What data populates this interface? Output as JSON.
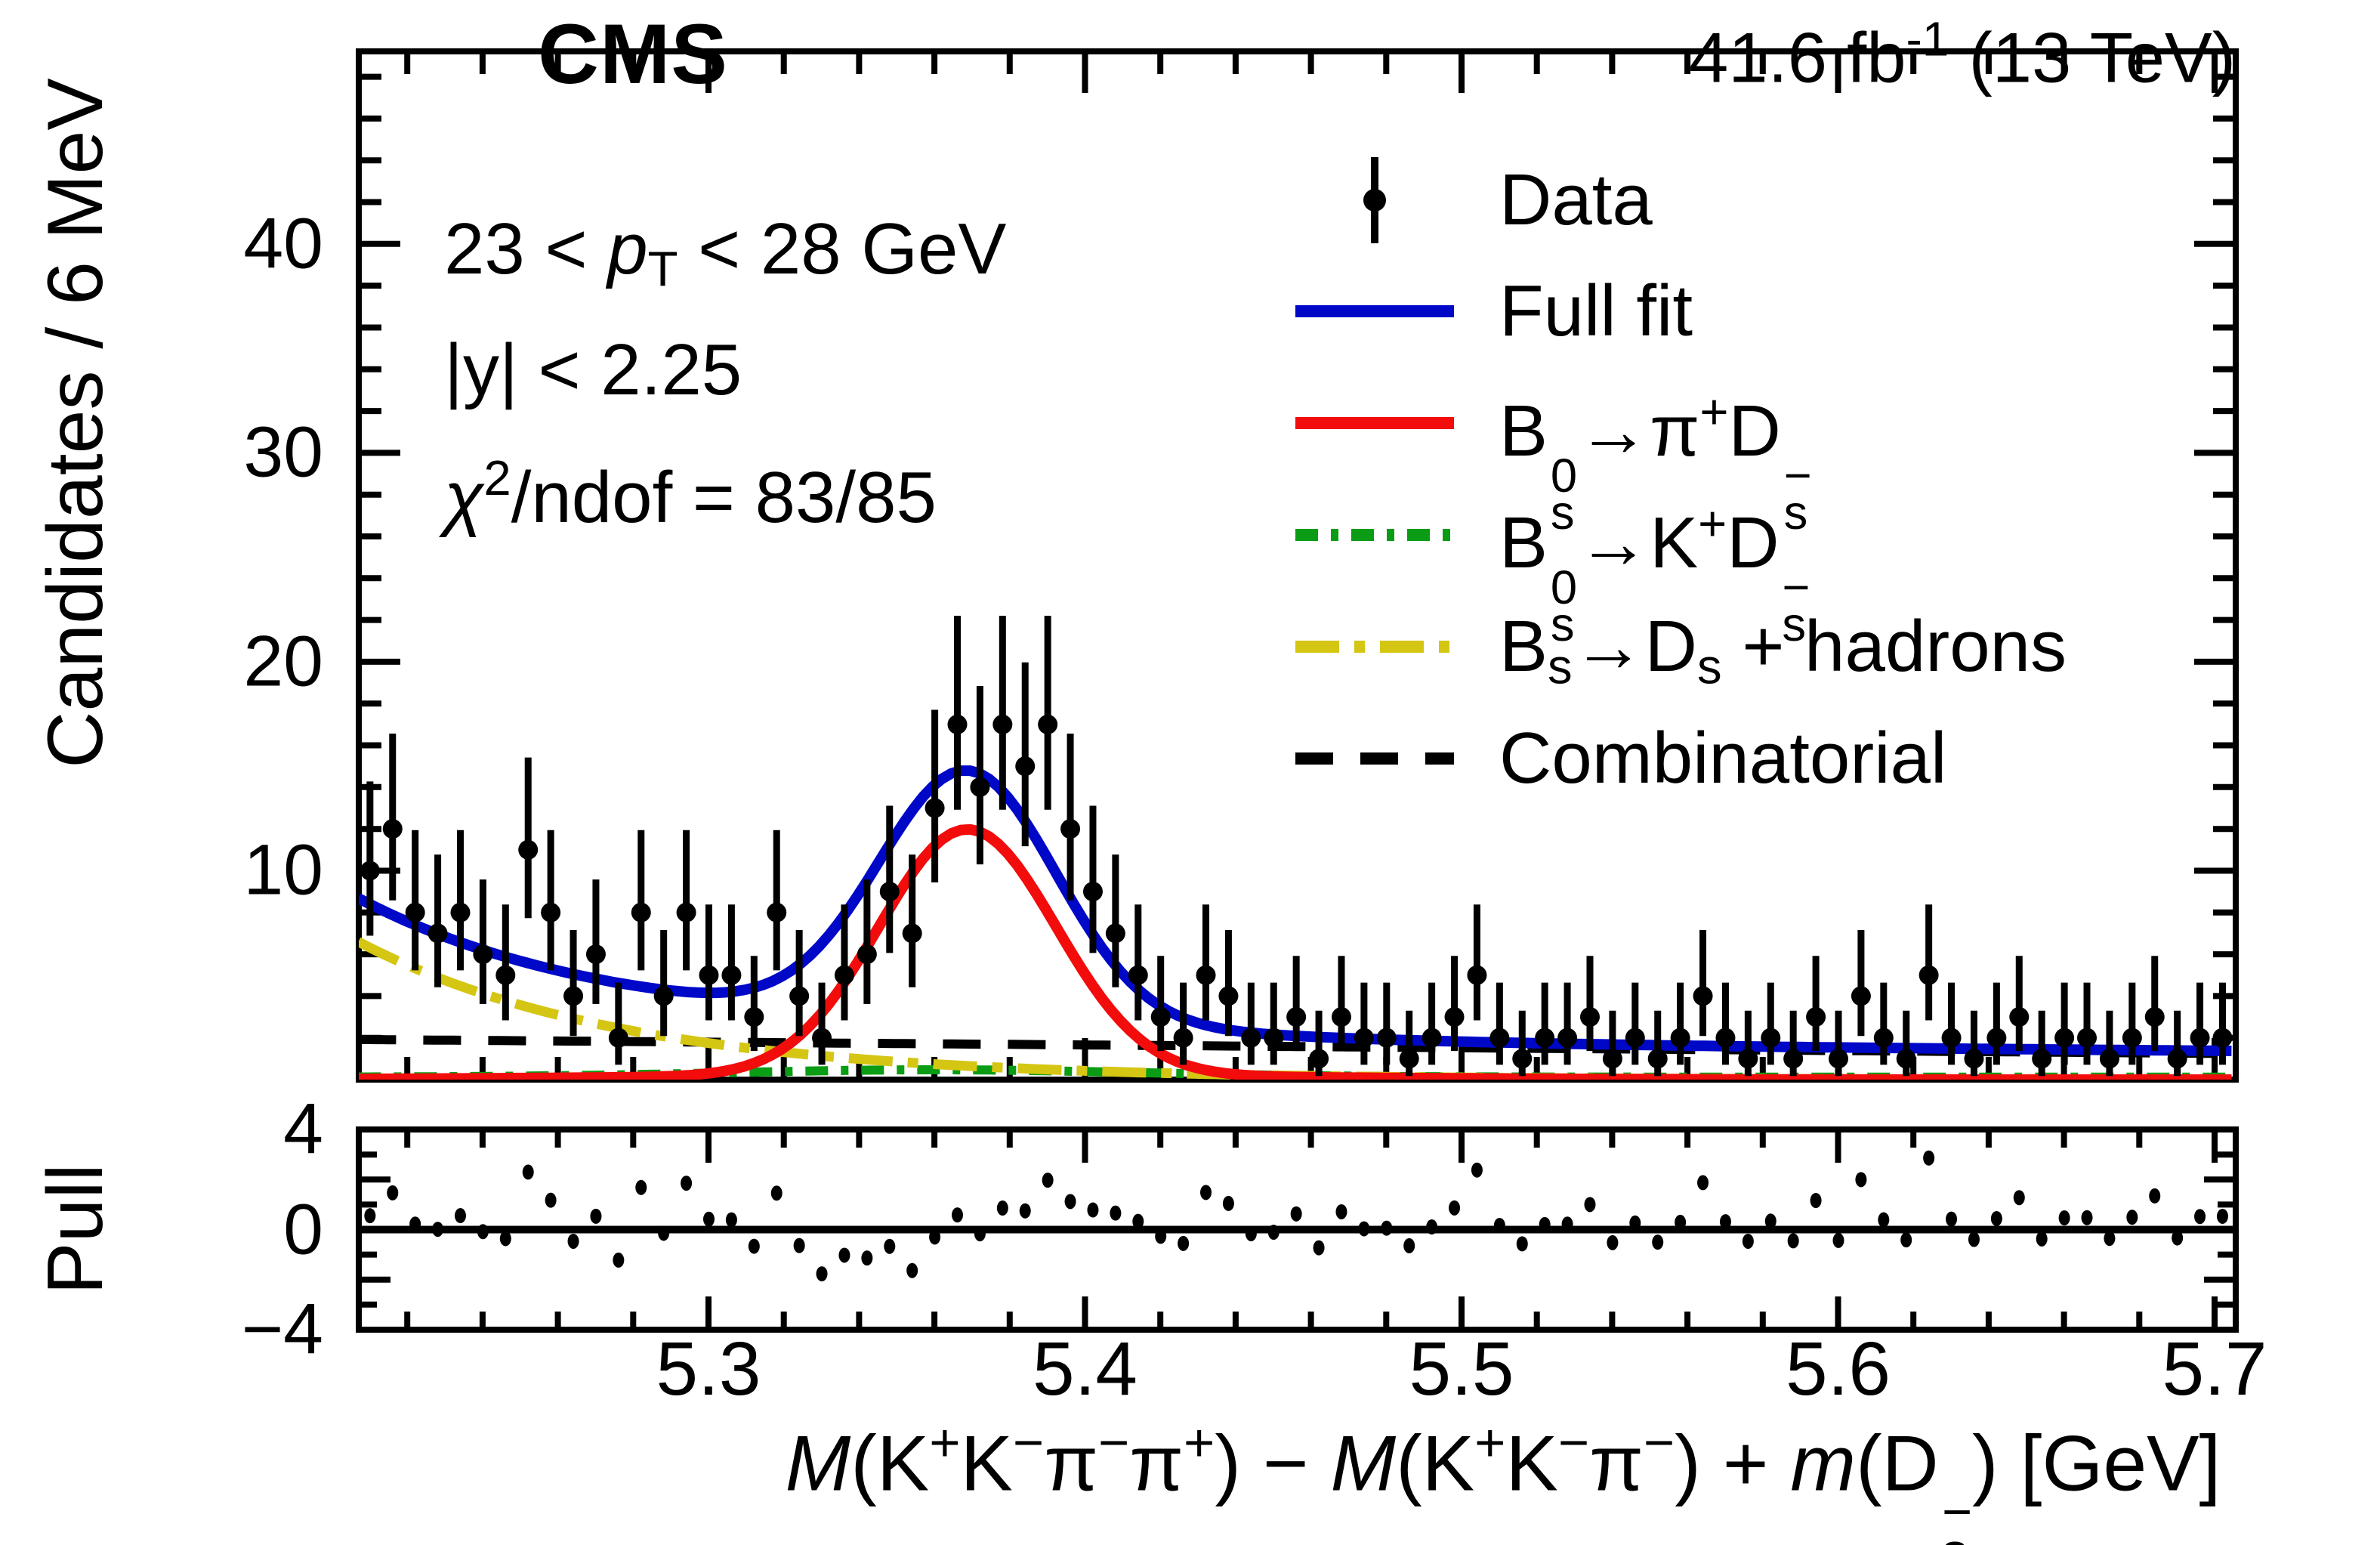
{
  "header": {
    "experiment_label": "CMS",
    "lumi_parts": [
      {
        "t": "41.6 fb"
      },
      {
        "sup": "-1"
      },
      {
        "t": " (13 TeV)"
      }
    ]
  },
  "annotations": [
    {
      "name": "pt-range-annotation",
      "parts": [
        {
          "t": "23 < "
        },
        {
          "i": "p"
        },
        {
          "sub": "T"
        },
        {
          "t": " < 28 GeV"
        }
      ]
    },
    {
      "name": "rapidity-annotation",
      "parts": [
        {
          "t": "|y| < 2.25"
        }
      ]
    },
    {
      "name": "chi2-annotation",
      "parts": [
        {
          "i": "χ"
        },
        {
          "sup": "2"
        },
        {
          "t": "/ndof = 83/85"
        }
      ]
    }
  ],
  "legend": [
    {
      "name": "data",
      "marker": "point",
      "color": "#000000",
      "parts": [
        {
          "t": "Data"
        }
      ]
    },
    {
      "name": "full-fit",
      "marker": "line",
      "color": "#0008c8",
      "dash": "",
      "parts": [
        {
          "t": "Full fit"
        }
      ]
    },
    {
      "name": "pi-ds",
      "marker": "line",
      "color": "#f20c0c",
      "dash": "",
      "parts": [
        {
          "t": "B"
        },
        {
          "stack": {
            "sup": "0",
            "sub": "s"
          }
        },
        {
          "t": "→π"
        },
        {
          "sup": "+"
        },
        {
          "t": "D"
        },
        {
          "stack": {
            "sup": "−",
            "sub": "s"
          }
        }
      ]
    },
    {
      "name": "k-ds",
      "marker": "line",
      "color": "#0a9c14",
      "dash": "30,17,10,17",
      "parts": [
        {
          "t": "B"
        },
        {
          "stack": {
            "sup": "0",
            "sub": "s"
          }
        },
        {
          "t": "→K"
        },
        {
          "sup": "+"
        },
        {
          "t": "D"
        },
        {
          "stack": {
            "sup": "−",
            "sub": "s"
          }
        }
      ]
    },
    {
      "name": "ds-hadrons",
      "marker": "line",
      "color": "#d4c613",
      "dash": "58,20,14,20",
      "parts": [
        {
          "t": "B"
        },
        {
          "sub": "s"
        },
        {
          "t": "→D"
        },
        {
          "sub": "s"
        },
        {
          "t": " + hadrons"
        }
      ]
    },
    {
      "name": "combinatorial",
      "marker": "line",
      "color": "#000000",
      "dash": "50,36",
      "parts": [
        {
          "t": "Combinatorial"
        }
      ]
    }
  ],
  "chart_data": {
    "type": "histogram_fit_with_pull",
    "title": "CMS",
    "xlabel_parts": [
      {
        "i": "M"
      },
      {
        "t": "(K"
      },
      {
        "sup": "+"
      },
      {
        "t": "K"
      },
      {
        "sup": "−"
      },
      {
        "t": "π"
      },
      {
        "sup": "−"
      },
      {
        "t": "π"
      },
      {
        "sup": "+"
      },
      {
        "t": ") − "
      },
      {
        "i": "M"
      },
      {
        "t": "(K"
      },
      {
        "sup": "+"
      },
      {
        "t": "K"
      },
      {
        "sup": "−"
      },
      {
        "t": "π"
      },
      {
        "sup": "−"
      },
      {
        "t": ") + "
      },
      {
        "i": "m"
      },
      {
        "t": "(D"
      },
      {
        "stack": {
          "sup": "−",
          "sub": "s"
        }
      },
      {
        "t": ") [GeV]"
      }
    ],
    "ylabel_main": "Candidates / 6 MeV",
    "ylabel_pull": "Pull",
    "x_ticks": [
      "5.3",
      "5.4",
      "5.5",
      "5.6",
      "5.7"
    ],
    "x_tick_values": [
      5.3,
      5.4,
      5.5,
      5.6,
      5.7
    ],
    "x_minor_step": 0.02,
    "y_ticks_main": [
      {
        "label": "10",
        "v": 10
      },
      {
        "label": "20",
        "v": 20
      },
      {
        "label": "30",
        "v": 30
      },
      {
        "label": "40",
        "v": 40
      }
    ],
    "y_minor_step_main": 2,
    "y_ticks_pull": [
      {
        "label": "4",
        "v": 4
      },
      {
        "label": "0",
        "v": 0
      },
      {
        "label": "−4",
        "v": -4
      }
    ],
    "xlim": [
      5.207,
      5.7056
    ],
    "ylim_main": [
      0,
      49.2
    ],
    "ylim_pull": [
      -4,
      4
    ],
    "bins": {
      "first_center": 5.2101,
      "width": 0.006,
      "count": 83
    },
    "counts": [
      10,
      12,
      8,
      7,
      8,
      6,
      5,
      11,
      8,
      4,
      6,
      2,
      8,
      4,
      8,
      5,
      5,
      3,
      8,
      4,
      2,
      5,
      6,
      9,
      7,
      13,
      17,
      14,
      17,
      15,
      17,
      12,
      9,
      7,
      5,
      3,
      2,
      5,
      4,
      2,
      2,
      3,
      1,
      3,
      2,
      2,
      1,
      2,
      3,
      5,
      2,
      1,
      2,
      2,
      3,
      1,
      2,
      1,
      2,
      4,
      2,
      1,
      2,
      1,
      3,
      1,
      4,
      2,
      1,
      5,
      2,
      1,
      2,
      3,
      1,
      2,
      2,
      1,
      2,
      3,
      1,
      2,
      2
    ],
    "error_bars": "poisson_68pct_asymmetric",
    "pull_definition": "(data - fit) / sqrt(fit)",
    "fit_components": {
      "combinatorial": {
        "model": "linear",
        "a": 1.92,
        "slope": -1.35,
        "color": "#000000",
        "dash": "50,36",
        "width": 12
      },
      "ds_hadrons": {
        "model": "exp",
        "amp": 6.6,
        "tau": 0.07,
        "color": "#d4c613",
        "dash": "58,20,14,20",
        "width": 13
      },
      "k_ds": {
        "model": "gauss_base",
        "base": 0.12,
        "amp": 0.35,
        "mean": 5.36,
        "sigma": 0.055,
        "color": "#0a9c14",
        "dash": "30,17,10,17",
        "width": 12
      },
      "pi_ds": {
        "model": "gauss2",
        "a1": 11.8,
        "mean": 5.3688,
        "s1": 0.0235,
        "a2": 0.18,
        "s2": 0.09,
        "color": "#f20c0c",
        "dash": "",
        "width": 14
      },
      "full_fit": {
        "model": "sum",
        "color": "#0008c8",
        "dash": "",
        "width": 14
      }
    }
  }
}
